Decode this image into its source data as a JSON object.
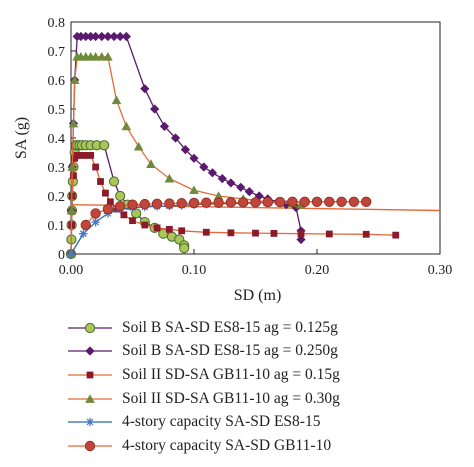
{
  "chart_data": {
    "type": "line",
    "title": "",
    "xlabel": "SD (m)",
    "ylabel": "SA (g)",
    "xlim": [
      0,
      0.3
    ],
    "ylim": [
      0,
      0.8
    ],
    "xticks": [
      "0.00",
      "0.10",
      "0.20",
      "0.30"
    ],
    "yticks": [
      "0",
      "0.1",
      "0.2",
      "0.3",
      "0.4",
      "0.5",
      "0.6",
      "0.7",
      "0.8"
    ],
    "grid": false,
    "legend_placement": "below",
    "series": [
      {
        "name": "Soil B SA-SD ES8-15 ag = 0.125g",
        "marker": "circle-green",
        "line_color": "#5a1a6e",
        "marker_color": "#a8c65a",
        "x": [
          0,
          0.0003,
          0.0005,
          0.0008,
          0.001,
          0.0015,
          0.002,
          0.003,
          0.004,
          0.005,
          0.007,
          0.009,
          0.012,
          0.016,
          0.021,
          0.027,
          0.035,
          0.04,
          0.046,
          0.053,
          0.06,
          0.068,
          0.075,
          0.082,
          0.088,
          0.092,
          0.092
        ],
        "y": [
          0,
          0.05,
          0.1,
          0.15,
          0.2,
          0.25,
          0.3,
          0.35,
          0.375,
          0.375,
          0.375,
          0.375,
          0.375,
          0.375,
          0.375,
          0.375,
          0.25,
          0.2,
          0.17,
          0.14,
          0.11,
          0.09,
          0.07,
          0.06,
          0.05,
          0.03,
          0.02
        ]
      },
      {
        "name": "Soil B SA-SD ES8-15 ag = 0.250g",
        "marker": "diamond",
        "line_color": "#5a1a6e",
        "marker_color": "#5a1a6e",
        "x": [
          0,
          0.0005,
          0.001,
          0.002,
          0.003,
          0.005,
          0.008,
          0.012,
          0.016,
          0.02,
          0.025,
          0.03,
          0.035,
          0.04,
          0.045,
          0.06,
          0.068,
          0.076,
          0.085,
          0.093,
          0.1,
          0.108,
          0.115,
          0.123,
          0.13,
          0.138,
          0.145,
          0.153,
          0.16,
          0.168,
          0.175,
          0.183,
          0.187,
          0.187
        ],
        "y": [
          0,
          0.15,
          0.3,
          0.45,
          0.6,
          0.75,
          0.75,
          0.75,
          0.75,
          0.75,
          0.75,
          0.75,
          0.75,
          0.75,
          0.75,
          0.57,
          0.5,
          0.44,
          0.4,
          0.36,
          0.33,
          0.3,
          0.28,
          0.26,
          0.245,
          0.23,
          0.215,
          0.2,
          0.19,
          0.18,
          0.17,
          0.16,
          0.08,
          0.05
        ]
      },
      {
        "name": "Soil II SD-SA GB11-10 ag = 0.15g",
        "marker": "square",
        "line_color": "#e36b3a",
        "marker_color": "#8b1a2a",
        "x": [
          0,
          0.0005,
          0.001,
          0.002,
          0.003,
          0.005,
          0.008,
          0.012,
          0.016,
          0.02,
          0.024,
          0.028,
          0.032,
          0.037,
          0.043,
          0.05,
          0.06,
          0.07,
          0.08,
          0.09,
          0.11,
          0.13,
          0.15,
          0.165,
          0.187,
          0.21,
          0.24,
          0.264
        ],
        "y": [
          0,
          0.1,
          0.2,
          0.27,
          0.33,
          0.34,
          0.34,
          0.34,
          0.34,
          0.3,
          0.25,
          0.21,
          0.18,
          0.155,
          0.135,
          0.115,
          0.1,
          0.09,
          0.085,
          0.08,
          0.075,
          0.073,
          0.072,
          0.071,
          0.07,
          0.069,
          0.068,
          0.065
        ]
      },
      {
        "name": "Soil II SD-SA GB11-10 ag = 0.30g",
        "marker": "triangle",
        "line_color": "#e36b3a",
        "marker_color": "#6f8a3c",
        "x": [
          0,
          0.0005,
          0.001,
          0.002,
          0.003,
          0.005,
          0.008,
          0.012,
          0.016,
          0.02,
          0.025,
          0.03,
          0.037,
          0.045,
          0.055,
          0.065,
          0.08,
          0.1,
          0.12,
          0.14,
          0.16,
          0.18,
          0.187
        ],
        "y": [
          0,
          0.15,
          0.3,
          0.45,
          0.6,
          0.68,
          0.68,
          0.68,
          0.68,
          0.68,
          0.68,
          0.68,
          0.53,
          0.44,
          0.37,
          0.31,
          0.26,
          0.22,
          0.2,
          0.19,
          0.18,
          0.175,
          0.17
        ]
      },
      {
        "name": "4-story capacity SA-SD ES8-15",
        "marker": "asterisk",
        "line_color": "#2a6aa8",
        "marker_color": "#4a78c8",
        "x": [
          0,
          0.01,
          0.02,
          0.03,
          0.04,
          0.05,
          0.06,
          0.07,
          0.08,
          0.09,
          0.1,
          0.11,
          0.12,
          0.13,
          0.14,
          0.15,
          0.16,
          0.17,
          0.18,
          0.19,
          0.2,
          0.21,
          0.22
        ],
        "y": [
          0,
          0.07,
          0.11,
          0.14,
          0.155,
          0.16,
          0.162,
          0.164,
          0.166,
          0.168,
          0.17,
          0.172,
          0.173,
          0.174,
          0.175,
          0.176,
          0.177,
          0.178,
          0.179,
          0.18,
          0.18,
          0.18,
          0.18
        ]
      },
      {
        "name": "4-story capacity SA-SD GB11-10",
        "marker": "circle-red",
        "line_color": "#e36b3a",
        "marker_color": "#c0453a",
        "x": [
          0.012,
          0.02,
          0.03,
          0.04,
          0.05,
          0.06,
          0.07,
          0.08,
          0.09,
          0.1,
          0.11,
          0.12,
          0.13,
          0.14,
          0.15,
          0.16,
          0.17,
          0.18,
          0.19,
          0.2,
          0.21,
          0.22,
          0.23,
          0.24
        ],
        "y": [
          0.1,
          0.14,
          0.155,
          0.165,
          0.17,
          0.172,
          0.173,
          0.174,
          0.175,
          0.176,
          0.177,
          0.177,
          0.178,
          0.178,
          0.178,
          0.179,
          0.179,
          0.18,
          0.18,
          0.18,
          0.18,
          0.18,
          0.18,
          0.18
        ]
      }
    ],
    "extra_lines": [
      {
        "color": "#e36b3a",
        "x": [
          0,
          0.3
        ],
        "y": [
          0.17,
          0.15
        ]
      }
    ]
  }
}
